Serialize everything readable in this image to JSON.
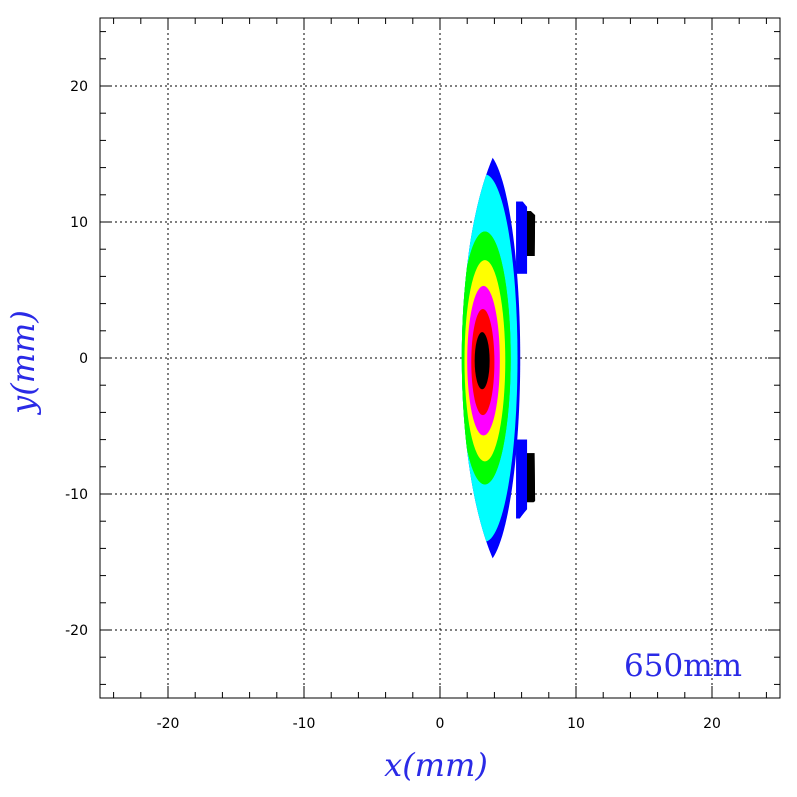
{
  "chart_data": {
    "type": "heatmap",
    "title": "",
    "xlabel": "x(mm)",
    "ylabel": "y(mm)",
    "xlim": [
      -25,
      25
    ],
    "ylim": [
      -25,
      25
    ],
    "xticks": [
      -20,
      -10,
      0,
      10,
      20
    ],
    "yticks": [
      -20,
      -10,
      0,
      10,
      20
    ],
    "xtick_labels": [
      "-20",
      "-10",
      "0",
      "10",
      "20"
    ],
    "ytick_labels": [
      "-20",
      "-10",
      "0",
      "10",
      "20"
    ],
    "grid": true,
    "annotation": "650mm",
    "contour_region": {
      "upper_tip": [
        4.5,
        16
      ],
      "lower_tip": [
        4.5,
        -16
      ],
      "left_edge_x_at_center": 1.6,
      "right_edge_x_at_center": 6.9,
      "right_edge_x_at_y10": 7.0
    },
    "levels": [
      {
        "color": "#0000ff",
        "center": [
          3.2,
          0
        ],
        "rx": 2.7,
        "ry": 15.2
      },
      {
        "color": "#00ffff",
        "center": [
          3.3,
          0
        ],
        "rx": 2.4,
        "ry": 13.5
      },
      {
        "color": "#00ff00",
        "center": [
          3.3,
          0
        ],
        "rx": 1.9,
        "ry": 9.3
      },
      {
        "color": "#ffff00",
        "center": [
          3.3,
          -0.2
        ],
        "rx": 1.5,
        "ry": 7.4
      },
      {
        "color": "#ff00ff",
        "center": [
          3.2,
          -0.2
        ],
        "rx": 1.2,
        "ry": 5.5
      },
      {
        "color": "#ff0000",
        "center": [
          3.15,
          -0.3
        ],
        "rx": 0.85,
        "ry": 3.9
      },
      {
        "color": "#000000",
        "center": [
          3.1,
          -0.2
        ],
        "rx": 0.55,
        "ry": 2.1
      }
    ],
    "corner_patches": [
      {
        "color": "#0000ff",
        "y_from": 6.2,
        "y_to": 11.5,
        "x_from": 5.6,
        "x_to": 6.4
      },
      {
        "color": "#000000",
        "y_from": 7.5,
        "y_to": 10.8,
        "x_from": 6.4,
        "x_to": 7.0
      },
      {
        "color": "#0000ff",
        "y_from": -11.8,
        "y_to": -6.0,
        "x_from": 5.6,
        "x_to": 6.4
      },
      {
        "color": "#000000",
        "y_from": -10.6,
        "y_to": -7.0,
        "x_from": 6.4,
        "x_to": 7.0
      }
    ]
  }
}
